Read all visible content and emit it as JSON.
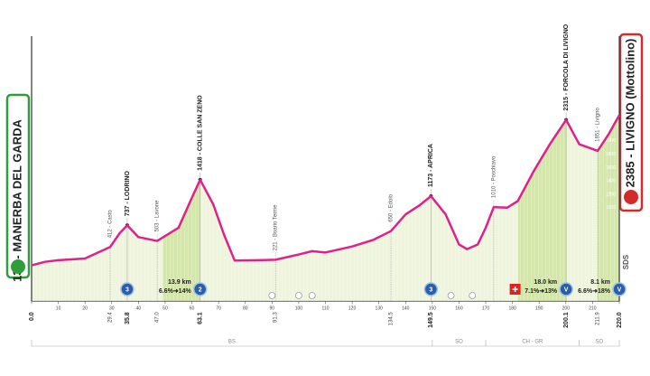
{
  "chart_data": {
    "type": "area",
    "start_label": "138 - MANERBA DEL GARDA",
    "finish_label": "2385 - LIVIGNO (Mottolino)",
    "sds": "SDS",
    "x": [
      0,
      5,
      10,
      20,
      29.4,
      33,
      35.8,
      40,
      47,
      55,
      60,
      63.1,
      68,
      72,
      76,
      85,
      91.3,
      100,
      105,
      110,
      120,
      128,
      134.5,
      140,
      145,
      149.5,
      155,
      160,
      163,
      167,
      170,
      173,
      178,
      182,
      188,
      194,
      200.1,
      205,
      211.9,
      216,
      220
    ],
    "values": [
      138,
      190,
      215,
      240,
      412,
      620,
      737,
      560,
      503,
      700,
      1150,
      1418,
      1050,
      600,
      210,
      215,
      221,
      300,
      350,
      330,
      420,
      520,
      650,
      900,
      1030,
      1173,
      900,
      450,
      380,
      450,
      700,
      1010,
      1000,
      1100,
      1550,
      1950,
      2315,
      1950,
      1851,
      2100,
      2385
    ],
    "line_color": "#e0218a",
    "fill_color": "#eef5dc",
    "climb_color": "#d3e7a6",
    "xlim": [
      0,
      220
    ],
    "ylim": [
      -400,
      3500
    ],
    "xticks": [
      {
        "value": 0,
        "label": "0.0"
      },
      10,
      20,
      30,
      40,
      50,
      60,
      70,
      80,
      90,
      100,
      110,
      120,
      130,
      140,
      150,
      160,
      170,
      180,
      190,
      200,
      210,
      220
    ],
    "yticks": [
      1000,
      1200,
      1400,
      1600,
      1800,
      2000
    ],
    "landmarks": [
      {
        "km": 29.4,
        "elev": 412,
        "label": "412 - Casto",
        "major": false
      },
      {
        "km": 35.8,
        "elev": 737,
        "label": "737 - LODRINO",
        "major": true
      },
      {
        "km": 47,
        "elev": 503,
        "label": "503 - Lavone",
        "major": false
      },
      {
        "km": 63.1,
        "elev": 1418,
        "label": "1418 - COLLE SAN ZENO",
        "major": true
      },
      {
        "km": 91.3,
        "elev": 221,
        "label": "221 - Boario Terme",
        "major": false
      },
      {
        "km": 134.5,
        "elev": 650,
        "label": "650 - Edolo",
        "major": false
      },
      {
        "km": 149.5,
        "elev": 1173,
        "label": "1173 - APRICA",
        "major": true
      },
      {
        "km": 173,
        "elev": 1010,
        "label": "1010 - Poschiavo",
        "major": false
      },
      {
        "km": 200.1,
        "elev": 2315,
        "label": "2315 - FORCOLA DI LIVIGNO",
        "major": true
      },
      {
        "km": 211.9,
        "elev": 1851,
        "label": "1851 - Livigno",
        "major": false
      }
    ],
    "km_marks": [
      {
        "value": 0,
        "label": "0.0",
        "major": true
      },
      {
        "value": 29.4,
        "major": false
      },
      {
        "value": 35.8,
        "major": true
      },
      {
        "value": 47,
        "label": "47.0",
        "major": false
      },
      {
        "value": 63.1,
        "major": true
      },
      {
        "value": 91.3,
        "major": false
      },
      {
        "value": 134.5,
        "major": false
      },
      {
        "value": 149.5,
        "major": true
      },
      {
        "value": 200.1,
        "major": true
      },
      {
        "value": 211.9,
        "major": false
      },
      {
        "value": 220,
        "label": "220.0",
        "major": true
      }
    ],
    "gpm": [
      {
        "km": 35.8,
        "cat": "3"
      },
      {
        "km": 63.1,
        "cat": "2"
      },
      {
        "km": 149.5,
        "cat": "3"
      },
      {
        "km": 200.1,
        "cat": "V"
      },
      {
        "km": 220,
        "cat": "V"
      }
    ],
    "climbs": [
      {
        "end": 63.1,
        "length": 13.9,
        "length_label": "13.9 km",
        "grade_label": "6.6%➜14%"
      },
      {
        "end": 200.1,
        "length": 18,
        "length_label": "18.0 km",
        "grade_label": "7.1%➜13%"
      },
      {
        "end": 220,
        "length": 8.1,
        "length_label": "8.1 km",
        "grade_label": "6.6%➜18%"
      }
    ],
    "zones": [
      {
        "from": 0,
        "to": 150,
        "label": "BS"
      },
      {
        "from": 150,
        "to": 170,
        "label": "SO"
      },
      {
        "from": 170,
        "to": 205,
        "label": "CH - GR"
      },
      {
        "from": 205,
        "to": 220,
        "label": "SO"
      }
    ]
  }
}
